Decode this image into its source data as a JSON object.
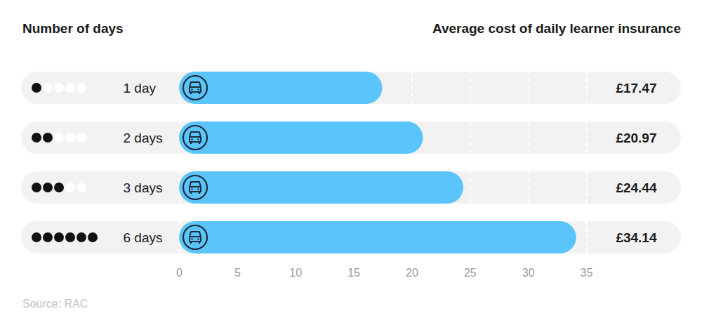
{
  "chart_data": {
    "type": "bar",
    "orientation": "horizontal",
    "title": "Average cost of daily learner insurance",
    "y_label": "Number of days",
    "source": "Source: RAC",
    "categories": [
      "1 day",
      "2 days",
      "3 days",
      "6 days"
    ],
    "values": [
      17.47,
      20.97,
      24.44,
      34.14
    ],
    "value_labels": [
      "£17.47",
      "£20.97",
      "£24.44",
      "£34.14"
    ],
    "data_labels": true,
    "color": "#5bc5fb",
    "xlim": [
      0,
      35
    ],
    "xticks": [
      0,
      5,
      10,
      15,
      20,
      25,
      30,
      35
    ],
    "grid": true
  }
}
